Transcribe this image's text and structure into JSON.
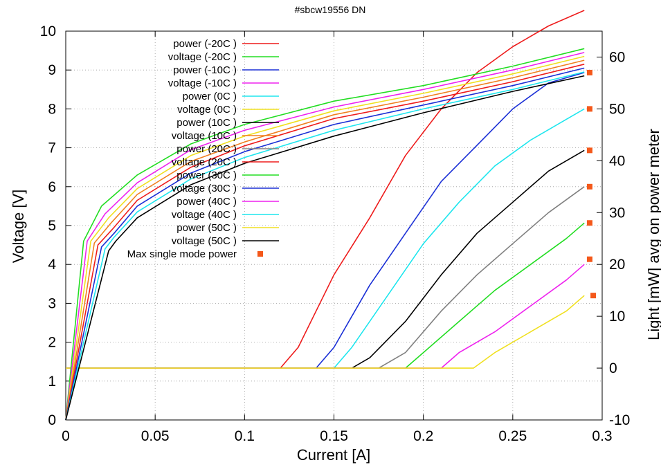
{
  "chart_data": {
    "type": "line",
    "title": "#sbcw19556 DN",
    "xlabel": "Current [A]",
    "ylabel": "Voltage [V]",
    "y2label": "Light [mW] avg on power meter",
    "xlim": [
      0,
      0.3
    ],
    "ylim": [
      0,
      10
    ],
    "y2lim": [
      -10,
      65
    ],
    "x_ticks": [
      "0",
      "0.05",
      "0.1",
      "0.15",
      "0.2",
      "0.25",
      "0.3"
    ],
    "y_ticks": [
      "0",
      "1",
      "2",
      "3",
      "4",
      "5",
      "6",
      "7",
      "8",
      "9",
      "10"
    ],
    "y2_ticks": [
      "-10",
      "0",
      "10",
      "20",
      "30",
      "40",
      "50",
      "60"
    ],
    "grid": true,
    "legend_position": "top-left",
    "colors": {
      "red": "#ee1c1c",
      "green": "#22dd22",
      "blue": "#1a2fd6",
      "magenta": "#ee22ee",
      "cyan": "#1fe6ee",
      "yellow": "#f0e020",
      "black": "#000000",
      "orange": "#f08020",
      "gray": "#808080",
      "marker": "#f4581a"
    },
    "legend": [
      {
        "label": "power (-20C )",
        "color": "#ee1c1c",
        "kind": "line"
      },
      {
        "label": "voltage (-20C )",
        "color": "#22dd22",
        "kind": "line"
      },
      {
        "label": "power (-10C )",
        "color": "#1a2fd6",
        "kind": "line"
      },
      {
        "label": "voltage (-10C )",
        "color": "#ee22ee",
        "kind": "line"
      },
      {
        "label": "power (0C )",
        "color": "#1fe6ee",
        "kind": "line"
      },
      {
        "label": "voltage (0C )",
        "color": "#f0e020",
        "kind": "line"
      },
      {
        "label": "power (10C )",
        "color": "#000000",
        "kind": "line"
      },
      {
        "label": "voltage (10C )",
        "color": "#f08020",
        "kind": "line"
      },
      {
        "label": "power (20C )",
        "color": "#808080",
        "kind": "line"
      },
      {
        "label": "voltage (20C )",
        "color": "#ee1c1c",
        "kind": "line"
      },
      {
        "label": "power (30C )",
        "color": "#22dd22",
        "kind": "line"
      },
      {
        "label": "voltage (30C )",
        "color": "#1a2fd6",
        "kind": "line"
      },
      {
        "label": "power (40C )",
        "color": "#ee22ee",
        "kind": "line"
      },
      {
        "label": "voltage (40C )",
        "color": "#1fe6ee",
        "kind": "line"
      },
      {
        "label": "power (50C )",
        "color": "#f0e020",
        "kind": "line"
      },
      {
        "label": "voltage (50C )",
        "color": "#000000",
        "kind": "line"
      },
      {
        "label": "Max single mode power",
        "color": "#f4581a",
        "kind": "marker"
      }
    ],
    "voltage_series": [
      {
        "name": "voltage (-20C )",
        "color": "#22dd22",
        "axis": "left",
        "points": [
          [
            0,
            0
          ],
          [
            0.01,
            4.6
          ],
          [
            0.02,
            5.5
          ],
          [
            0.04,
            6.3
          ],
          [
            0.07,
            7.1
          ],
          [
            0.1,
            7.6
          ],
          [
            0.15,
            8.2
          ],
          [
            0.2,
            8.6
          ],
          [
            0.25,
            9.1
          ],
          [
            0.29,
            9.55
          ]
        ]
      },
      {
        "name": "voltage (-10C )",
        "color": "#ee22ee",
        "axis": "left",
        "points": [
          [
            0,
            0
          ],
          [
            0.012,
            4.6
          ],
          [
            0.022,
            5.3
          ],
          [
            0.04,
            6.1
          ],
          [
            0.07,
            6.95
          ],
          [
            0.1,
            7.45
          ],
          [
            0.15,
            8.05
          ],
          [
            0.2,
            8.5
          ],
          [
            0.25,
            9.0
          ],
          [
            0.29,
            9.45
          ]
        ]
      },
      {
        "name": "voltage (0C )",
        "color": "#f0e020",
        "axis": "left",
        "points": [
          [
            0,
            0
          ],
          [
            0.014,
            4.6
          ],
          [
            0.024,
            5.2
          ],
          [
            0.04,
            5.95
          ],
          [
            0.07,
            6.8
          ],
          [
            0.1,
            7.3
          ],
          [
            0.15,
            7.95
          ],
          [
            0.2,
            8.4
          ],
          [
            0.25,
            8.9
          ],
          [
            0.29,
            9.35
          ]
        ]
      },
      {
        "name": "voltage (10C )",
        "color": "#f08020",
        "axis": "left",
        "points": [
          [
            0,
            0
          ],
          [
            0.016,
            4.55
          ],
          [
            0.025,
            5.05
          ],
          [
            0.04,
            5.8
          ],
          [
            0.07,
            6.65
          ],
          [
            0.1,
            7.15
          ],
          [
            0.15,
            7.85
          ],
          [
            0.2,
            8.3
          ],
          [
            0.25,
            8.8
          ],
          [
            0.29,
            9.25
          ]
        ]
      },
      {
        "name": "voltage (20C )",
        "color": "#ee1c1c",
        "axis": "left",
        "points": [
          [
            0,
            0
          ],
          [
            0.018,
            4.5
          ],
          [
            0.026,
            4.9
          ],
          [
            0.04,
            5.65
          ],
          [
            0.07,
            6.5
          ],
          [
            0.1,
            7.05
          ],
          [
            0.15,
            7.75
          ],
          [
            0.2,
            8.2
          ],
          [
            0.25,
            8.7
          ],
          [
            0.29,
            9.15
          ]
        ]
      },
      {
        "name": "voltage (30C )",
        "color": "#1a2fd6",
        "axis": "left",
        "points": [
          [
            0,
            0
          ],
          [
            0.02,
            4.45
          ],
          [
            0.027,
            4.8
          ],
          [
            0.04,
            5.5
          ],
          [
            0.07,
            6.35
          ],
          [
            0.1,
            6.9
          ],
          [
            0.15,
            7.6
          ],
          [
            0.2,
            8.1
          ],
          [
            0.25,
            8.6
          ],
          [
            0.29,
            9.05
          ]
        ]
      },
      {
        "name": "voltage (40C )",
        "color": "#1fe6ee",
        "axis": "left",
        "points": [
          [
            0,
            0
          ],
          [
            0.022,
            4.4
          ],
          [
            0.027,
            4.7
          ],
          [
            0.04,
            5.35
          ],
          [
            0.07,
            6.2
          ],
          [
            0.1,
            6.75
          ],
          [
            0.15,
            7.45
          ],
          [
            0.2,
            8.0
          ],
          [
            0.25,
            8.5
          ],
          [
            0.29,
            8.95
          ]
        ]
      },
      {
        "name": "voltage (50C )",
        "color": "#000000",
        "axis": "left",
        "points": [
          [
            0,
            0
          ],
          [
            0.024,
            4.35
          ],
          [
            0.028,
            4.6
          ],
          [
            0.04,
            5.2
          ],
          [
            0.07,
            6.05
          ],
          [
            0.1,
            6.6
          ],
          [
            0.15,
            7.3
          ],
          [
            0.2,
            7.9
          ],
          [
            0.25,
            8.45
          ],
          [
            0.29,
            8.85
          ]
        ]
      }
    ],
    "power_series": [
      {
        "name": "power (-20C )",
        "color": "#ee1c1c",
        "axis": "right",
        "points": [
          [
            0,
            0
          ],
          [
            0.12,
            0
          ],
          [
            0.13,
            4
          ],
          [
            0.15,
            18
          ],
          [
            0.17,
            29
          ],
          [
            0.19,
            41
          ],
          [
            0.21,
            50
          ],
          [
            0.23,
            57
          ],
          [
            0.25,
            62
          ],
          [
            0.27,
            66
          ],
          [
            0.29,
            69
          ]
        ]
      },
      {
        "name": "power (-10C )",
        "color": "#1a2fd6",
        "axis": "right",
        "points": [
          [
            0,
            0
          ],
          [
            0.14,
            0
          ],
          [
            0.15,
            4
          ],
          [
            0.17,
            16
          ],
          [
            0.19,
            26
          ],
          [
            0.21,
            36
          ],
          [
            0.23,
            43
          ],
          [
            0.25,
            50
          ],
          [
            0.27,
            55
          ],
          [
            0.29,
            57
          ]
        ]
      },
      {
        "name": "power (0C )",
        "color": "#1fe6ee",
        "axis": "right",
        "points": [
          [
            0,
            0
          ],
          [
            0.15,
            0
          ],
          [
            0.16,
            4
          ],
          [
            0.18,
            14
          ],
          [
            0.2,
            24
          ],
          [
            0.22,
            32
          ],
          [
            0.24,
            39
          ],
          [
            0.26,
            44
          ],
          [
            0.28,
            48
          ],
          [
            0.29,
            50
          ]
        ]
      },
      {
        "name": "power (10C )",
        "color": "#000000",
        "axis": "right",
        "points": [
          [
            0,
            0
          ],
          [
            0.16,
            0
          ],
          [
            0.17,
            2
          ],
          [
            0.19,
            9
          ],
          [
            0.21,
            18
          ],
          [
            0.23,
            26
          ],
          [
            0.25,
            32
          ],
          [
            0.27,
            38
          ],
          [
            0.29,
            42
          ]
        ]
      },
      {
        "name": "power (20C )",
        "color": "#808080",
        "axis": "right",
        "points": [
          [
            0,
            0
          ],
          [
            0.175,
            0
          ],
          [
            0.19,
            3
          ],
          [
            0.21,
            11
          ],
          [
            0.23,
            18
          ],
          [
            0.25,
            24
          ],
          [
            0.27,
            30
          ],
          [
            0.29,
            35
          ]
        ]
      },
      {
        "name": "power (30C )",
        "color": "#22dd22",
        "axis": "right",
        "points": [
          [
            0,
            0
          ],
          [
            0.19,
            0
          ],
          [
            0.2,
            3
          ],
          [
            0.22,
            9
          ],
          [
            0.24,
            15
          ],
          [
            0.26,
            20
          ],
          [
            0.28,
            25
          ],
          [
            0.29,
            28
          ]
        ]
      },
      {
        "name": "power (40C )",
        "color": "#ee22ee",
        "axis": "right",
        "points": [
          [
            0,
            0
          ],
          [
            0.21,
            0
          ],
          [
            0.22,
            3
          ],
          [
            0.24,
            7
          ],
          [
            0.26,
            12
          ],
          [
            0.28,
            17
          ],
          [
            0.29,
            20
          ]
        ]
      },
      {
        "name": "power (50C )",
        "color": "#f0e020",
        "axis": "right",
        "points": [
          [
            0,
            0
          ],
          [
            0.228,
            0
          ],
          [
            0.24,
            3
          ],
          [
            0.26,
            7
          ],
          [
            0.28,
            11
          ],
          [
            0.29,
            14
          ]
        ]
      }
    ],
    "max_single_mode_power": {
      "name": "Max single mode power",
      "color": "#f4581a",
      "axis": "right",
      "points": [
        [
          0.293,
          57
        ],
        [
          0.293,
          50
        ],
        [
          0.293,
          42
        ],
        [
          0.293,
          35
        ],
        [
          0.293,
          28
        ],
        [
          0.293,
          21
        ],
        [
          0.295,
          14
        ]
      ]
    }
  }
}
